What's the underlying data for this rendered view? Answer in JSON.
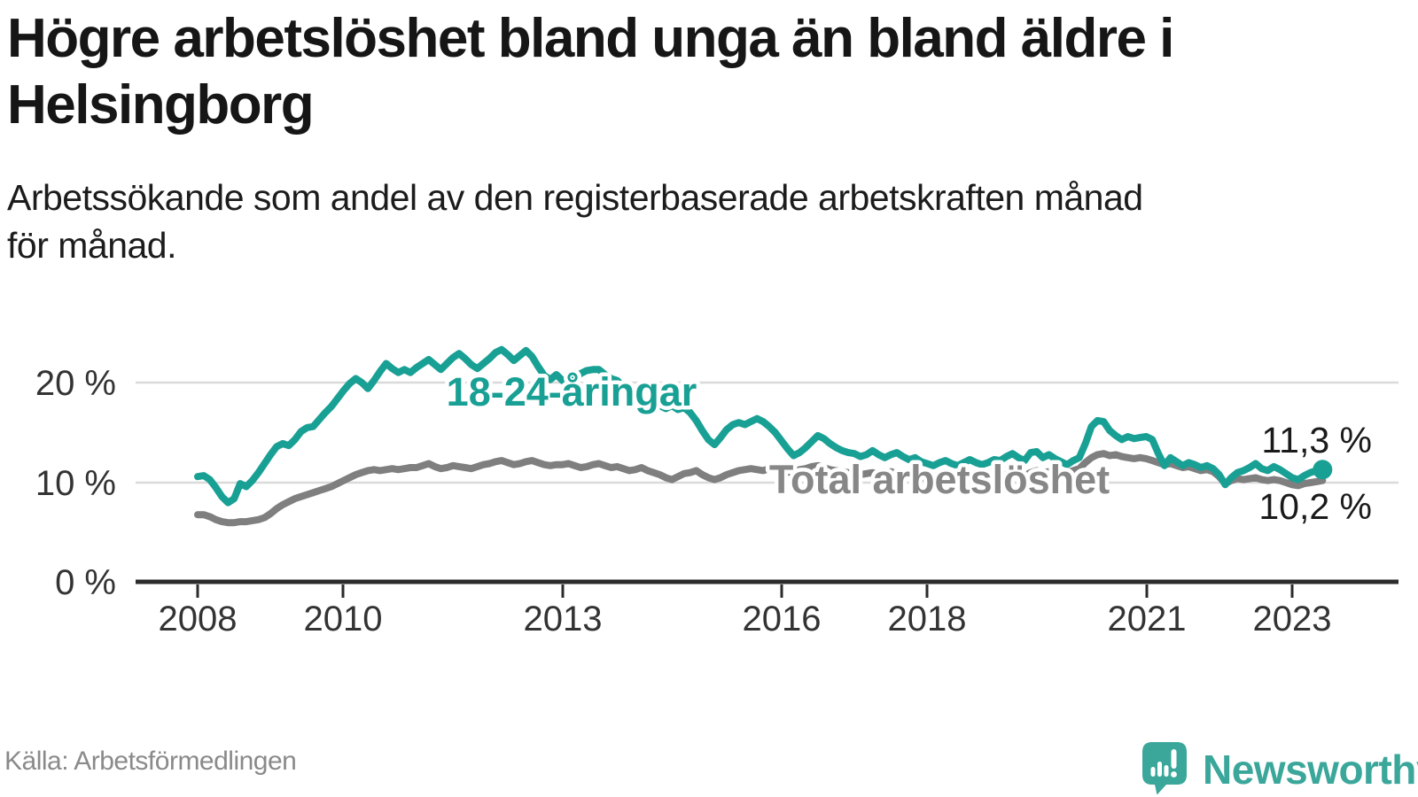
{
  "header": {
    "title_lines": [
      "Högre arbetslöshet bland unga än bland äldre i",
      "Helsingborg"
    ],
    "subtitle_lines": [
      "Arbetssökande som andel av den registerbaserade arbetskraften månad",
      "för månad."
    ]
  },
  "footer": {
    "source": "Källa: Arbetsförmedlingen",
    "brand": "Newsworthy"
  },
  "colors": {
    "accent_teal": "#19a095",
    "series_gray": "#7f7f7f",
    "label_gray": "#878787",
    "text_dark": "#1a1a1a",
    "grid": "#dadada",
    "axis": "#2b2b2b",
    "source_gray": "#8a8a8a",
    "logo_teal": "#3ba79b"
  },
  "chart_data": {
    "type": "line",
    "frequency": "monthly",
    "start": "2008-01",
    "end": "2023-06",
    "unit": "%",
    "ylim": [
      0,
      25
    ],
    "grid_values": [
      10,
      20
    ],
    "legend_position": "inline-labels",
    "x_tick_labels": [
      "2008",
      "2010",
      "2013",
      "2016",
      "2018",
      "2021",
      "2023"
    ],
    "x_tick_years": [
      2008,
      2010,
      2013,
      2016,
      2018,
      2021,
      2023
    ],
    "y_tick_labels": [
      "0 %",
      "10 %",
      "20 %"
    ],
    "series": [
      {
        "name": "18-24-åringar",
        "label": "18-24-åringar",
        "end_label": "11,3 %",
        "end_value": 11.3,
        "color": "#19a095",
        "values": [
          10.6,
          10.7,
          10.3,
          9.5,
          8.6,
          8.0,
          8.4,
          9.9,
          9.6,
          10.2,
          11.0,
          11.9,
          12.8,
          13.6,
          13.9,
          13.7,
          14.3,
          15.1,
          15.5,
          15.6,
          16.3,
          17.0,
          17.6,
          18.4,
          19.2,
          19.9,
          20.4,
          20.0,
          19.4,
          20.2,
          21.1,
          21.9,
          21.4,
          21.0,
          21.3,
          21.0,
          21.5,
          21.9,
          22.3,
          21.8,
          21.3,
          21.9,
          22.5,
          22.9,
          22.4,
          21.8,
          21.4,
          21.9,
          22.4,
          23.0,
          23.3,
          22.8,
          22.2,
          22.7,
          23.2,
          22.6,
          21.6,
          20.7,
          20.3,
          20.8,
          20.2,
          19.8,
          20.4,
          20.9,
          21.2,
          21.3,
          21.3,
          20.8,
          20.4,
          20.2,
          19.6,
          19.0,
          18.6,
          18.2,
          17.9,
          18.1,
          17.7,
          17.4,
          17.7,
          17.3,
          17.5,
          17.0,
          16.2,
          15.2,
          14.3,
          13.8,
          14.5,
          15.3,
          15.8,
          16.0,
          15.8,
          16.1,
          16.4,
          16.1,
          15.6,
          15.0,
          14.2,
          13.4,
          12.7,
          13.0,
          13.5,
          14.1,
          14.7,
          14.4,
          13.9,
          13.5,
          13.2,
          13.0,
          12.9,
          12.6,
          12.8,
          13.2,
          12.8,
          12.5,
          12.8,
          13.0,
          12.6,
          12.3,
          12.5,
          12.1,
          11.9,
          11.7,
          12.0,
          12.2,
          11.9,
          11.7,
          12.0,
          12.3,
          12.0,
          11.8,
          12.0,
          12.3,
          12.2,
          12.6,
          12.9,
          12.5,
          12.2,
          13.0,
          13.1,
          12.5,
          12.8,
          12.4,
          12.1,
          11.8,
          12.2,
          12.5,
          13.9,
          15.6,
          16.2,
          16.1,
          15.2,
          14.7,
          14.3,
          14.6,
          14.4,
          14.5,
          14.6,
          14.3,
          12.9,
          11.7,
          12.5,
          12.1,
          11.7,
          12.0,
          11.8,
          11.5,
          11.7,
          11.4,
          10.8,
          9.8,
          10.5,
          11.0,
          11.2,
          11.5,
          11.9,
          11.4,
          11.2,
          11.6,
          11.3,
          10.9,
          10.5,
          10.3,
          10.7,
          11.0,
          11.2,
          11.3
        ]
      },
      {
        "name": "Total arbetslöshet",
        "label": "Total arbetslöshet",
        "end_label": "10,2 %",
        "end_value": 10.2,
        "color": "#7f7f7f",
        "values": [
          6.8,
          6.8,
          6.6,
          6.3,
          6.1,
          6.0,
          6.0,
          6.1,
          6.1,
          6.2,
          6.3,
          6.5,
          6.9,
          7.4,
          7.8,
          8.1,
          8.4,
          8.6,
          8.8,
          9.0,
          9.2,
          9.4,
          9.6,
          9.9,
          10.2,
          10.5,
          10.8,
          11.0,
          11.2,
          11.3,
          11.2,
          11.3,
          11.4,
          11.3,
          11.4,
          11.5,
          11.5,
          11.7,
          11.9,
          11.6,
          11.4,
          11.5,
          11.7,
          11.6,
          11.5,
          11.4,
          11.6,
          11.8,
          11.9,
          12.1,
          12.2,
          12.0,
          11.8,
          11.9,
          12.1,
          12.2,
          12.0,
          11.8,
          11.7,
          11.8,
          11.8,
          11.9,
          11.7,
          11.5,
          11.6,
          11.8,
          11.9,
          11.7,
          11.5,
          11.6,
          11.4,
          11.2,
          11.3,
          11.5,
          11.2,
          11.0,
          10.8,
          10.5,
          10.3,
          10.6,
          10.9,
          11.0,
          11.2,
          10.8,
          10.5,
          10.3,
          10.5,
          10.8,
          11.0,
          11.2,
          11.3,
          11.4,
          11.3,
          11.2,
          11.4,
          11.3,
          11.2,
          11.0,
          11.1,
          11.3,
          11.4,
          11.6,
          11.7,
          11.5,
          11.3,
          11.2,
          11.1,
          11.0,
          10.9,
          10.8,
          10.9,
          11.0,
          10.8,
          10.9,
          11.1,
          10.9,
          10.7,
          10.6,
          10.7,
          10.5,
          10.4,
          10.3,
          10.5,
          10.6,
          10.4,
          10.3,
          10.5,
          10.6,
          10.4,
          10.3,
          10.5,
          10.7,
          10.6,
          10.8,
          11.0,
          10.9,
          10.7,
          11.0,
          11.2,
          11.0,
          11.1,
          11.2,
          11.1,
          11.0,
          11.2,
          11.4,
          12.0,
          12.5,
          12.8,
          12.9,
          12.7,
          12.8,
          12.6,
          12.5,
          12.4,
          12.5,
          12.4,
          12.2,
          12.0,
          11.8,
          11.9,
          11.7,
          11.5,
          11.6,
          11.4,
          11.2,
          11.3,
          11.1,
          10.6,
          9.9,
          10.2,
          10.4,
          10.3,
          10.4,
          10.5,
          10.3,
          10.2,
          10.3,
          10.2,
          10.0,
          9.8,
          9.7,
          9.9,
          10.0,
          10.1,
          10.2
        ]
      }
    ]
  }
}
